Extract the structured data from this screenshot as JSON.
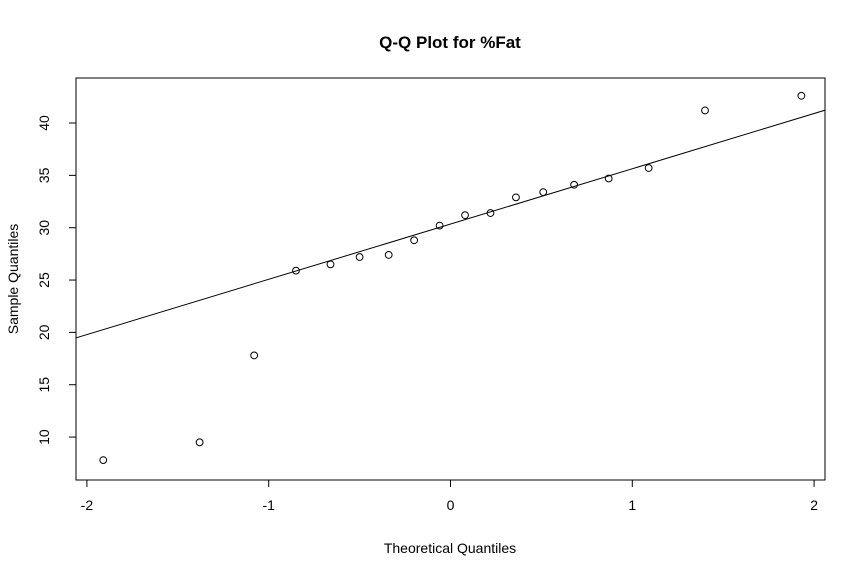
{
  "chart_data": {
    "type": "scatter",
    "title": "Q-Q Plot for %Fat",
    "xlabel": "Theoretical Quantiles",
    "ylabel": "Sample Quantiles",
    "xlim": [
      -2.06,
      2.06
    ],
    "ylim": [
      5.9,
      44.3
    ],
    "x_ticks": [
      -2,
      -1,
      0,
      1,
      2
    ],
    "y_ticks": [
      10,
      15,
      20,
      25,
      30,
      35,
      40
    ],
    "grid": false,
    "legend": "none",
    "points": [
      {
        "x": -1.91,
        "y": 7.8
      },
      {
        "x": -1.38,
        "y": 9.5
      },
      {
        "x": -1.08,
        "y": 17.8
      },
      {
        "x": -0.85,
        "y": 25.9
      },
      {
        "x": -0.66,
        "y": 26.5
      },
      {
        "x": -0.5,
        "y": 27.2
      },
      {
        "x": -0.34,
        "y": 27.4
      },
      {
        "x": -0.2,
        "y": 28.8
      },
      {
        "x": -0.06,
        "y": 30.2
      },
      {
        "x": 0.08,
        "y": 31.2
      },
      {
        "x": 0.22,
        "y": 31.4
      },
      {
        "x": 0.36,
        "y": 32.9
      },
      {
        "x": 0.51,
        "y": 33.4
      },
      {
        "x": 0.68,
        "y": 34.1
      },
      {
        "x": 0.87,
        "y": 34.7
      },
      {
        "x": 1.09,
        "y": 35.7
      },
      {
        "x": 1.4,
        "y": 41.2
      },
      {
        "x": 1.93,
        "y": 42.6
      }
    ],
    "reference_line": {
      "intercept": 30.35,
      "slope": 5.28
    },
    "colors": {
      "points": "#000000",
      "line": "#000000",
      "frame": "#000000",
      "background": "#ffffff"
    }
  }
}
